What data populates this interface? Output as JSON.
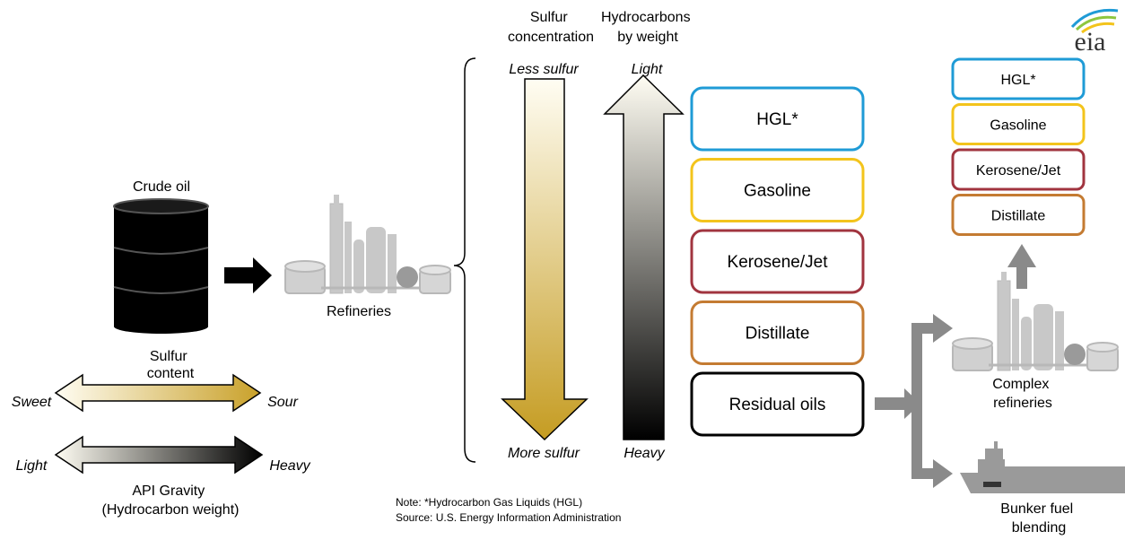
{
  "crude_oil": "Crude oil",
  "refineries": "Refineries",
  "sulfur_content": [
    "Sulfur",
    "content"
  ],
  "sulfur_scale": {
    "left": "Sweet",
    "right": "Sour"
  },
  "gravity_scale": {
    "left": "Light",
    "right": "Heavy"
  },
  "api_gravity": [
    "API Gravity",
    "(Hydrocarbon weight)"
  ],
  "sulfur_concentration": {
    "title": [
      "Sulfur",
      "concentration"
    ],
    "top": "Less sulfur",
    "bottom": "More sulfur"
  },
  "hydrocarbons_by_weight": {
    "title": [
      "Hydrocarbons",
      "by weight"
    ],
    "top": "Light",
    "bottom": "Heavy"
  },
  "products": [
    {
      "label": "HGL*",
      "color": "#1f9bd6"
    },
    {
      "label": "Gasoline",
      "color": "#f3c41c"
    },
    {
      "label": "Kerosene/Jet",
      "color": "#a1343f"
    },
    {
      "label": "Distillate",
      "color": "#c47b32"
    },
    {
      "label": "Residual oils",
      "color": "#000000"
    }
  ],
  "complex_products": [
    {
      "label": "HGL*",
      "color": "#1f9bd6"
    },
    {
      "label": "Gasoline",
      "color": "#f3c41c"
    },
    {
      "label": "Kerosene/Jet",
      "color": "#a1343f"
    },
    {
      "label": "Distillate",
      "color": "#c47b32"
    }
  ],
  "complex_refineries": [
    "Complex",
    "refineries"
  ],
  "bunker_fuel": [
    "Bunker fuel",
    "blending"
  ],
  "note": "Note: *Hydrocarbon Gas Liquids (HGL)",
  "source": "Source: U.S. Energy Information Administration",
  "logo": "eia"
}
